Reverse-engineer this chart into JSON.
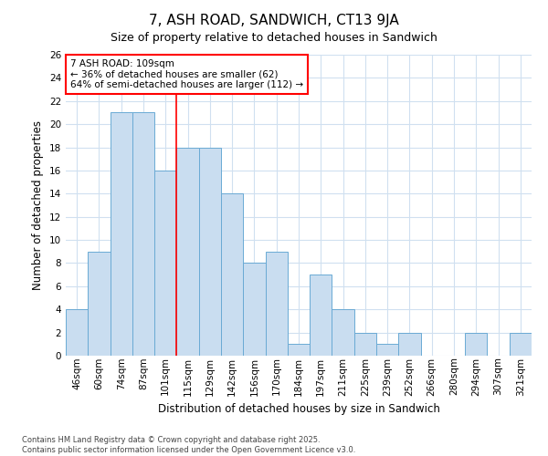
{
  "title": "7, ASH ROAD, SANDWICH, CT13 9JA",
  "subtitle": "Size of property relative to detached houses in Sandwich",
  "xlabel": "Distribution of detached houses by size in Sandwich",
  "ylabel": "Number of detached properties",
  "categories": [
    "46sqm",
    "60sqm",
    "74sqm",
    "87sqm",
    "101sqm",
    "115sqm",
    "129sqm",
    "142sqm",
    "156sqm",
    "170sqm",
    "184sqm",
    "197sqm",
    "211sqm",
    "225sqm",
    "239sqm",
    "252sqm",
    "266sqm",
    "280sqm",
    "294sqm",
    "307sqm",
    "321sqm"
  ],
  "values": [
    4,
    9,
    21,
    21,
    16,
    18,
    18,
    14,
    8,
    9,
    1,
    7,
    4,
    2,
    1,
    2,
    0,
    0,
    2,
    0,
    2
  ],
  "bar_color": "#c9ddf0",
  "bar_edgecolor": "#6aaad4",
  "bar_linewidth": 0.7,
  "ylim": [
    0,
    26
  ],
  "yticks": [
    0,
    2,
    4,
    6,
    8,
    10,
    12,
    14,
    16,
    18,
    20,
    22,
    24,
    26
  ],
  "vline_x_index": 4.5,
  "vline_color": "red",
  "annotation_line1": "7 ASH ROAD: 109sqm",
  "annotation_line2": "← 36% of detached houses are smaller (62)",
  "annotation_line3": "64% of semi-detached houses are larger (112) →",
  "annotation_box_color": "white",
  "annotation_box_edgecolor": "red",
  "footer1": "Contains HM Land Registry data © Crown copyright and database right 2025.",
  "footer2": "Contains public sector information licensed under the Open Government Licence v3.0.",
  "background_color": "#ffffff",
  "plot_background_color": "#ffffff",
  "grid_color": "#d0e0f0",
  "grid_linewidth": 0.8,
  "title_fontsize": 11,
  "subtitle_fontsize": 9,
  "axis_label_fontsize": 8.5,
  "tick_fontsize": 7.5,
  "annotation_fontsize": 7.5,
  "footer_fontsize": 6.0
}
